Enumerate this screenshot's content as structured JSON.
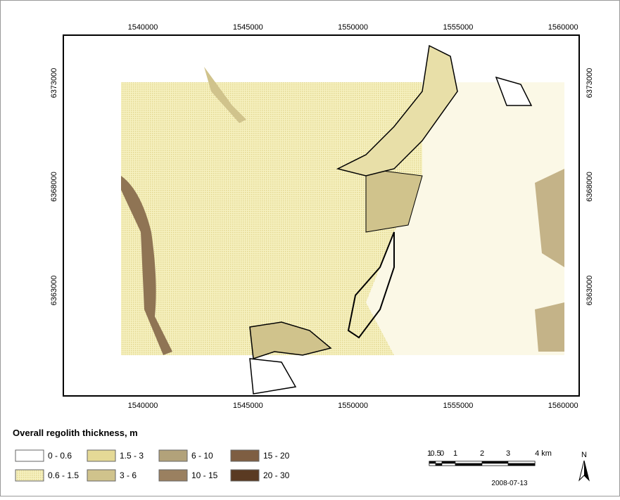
{
  "map": {
    "x_ticks": [
      1540000,
      1545000,
      1550000,
      1555000,
      1560000
    ],
    "y_ticks": [
      6373000,
      6368000,
      6363000
    ],
    "legend": {
      "title": "Overall regolith thickness, m",
      "items": [
        {
          "label": "0 - 0.6",
          "color": "#ffffff"
        },
        {
          "label": "0.6 - 1.5",
          "color": "#f3eeb0"
        },
        {
          "label": "1.5 - 3",
          "color": "#e5d996"
        },
        {
          "label": "3 - 6",
          "color": "#d0c38c"
        },
        {
          "label": "6 - 10",
          "color": "#b2a27a"
        },
        {
          "label": "10 - 15",
          "color": "#9a8060"
        },
        {
          "label": "15 - 20",
          "color": "#7e5e42"
        },
        {
          "label": "20 - 30",
          "color": "#5a3a22"
        }
      ]
    },
    "scale_bar": {
      "labels": [
        "1",
        "0.5",
        "0",
        "1",
        "2",
        "3",
        "4 km"
      ]
    },
    "date": "2008-07-13",
    "north": "N"
  }
}
